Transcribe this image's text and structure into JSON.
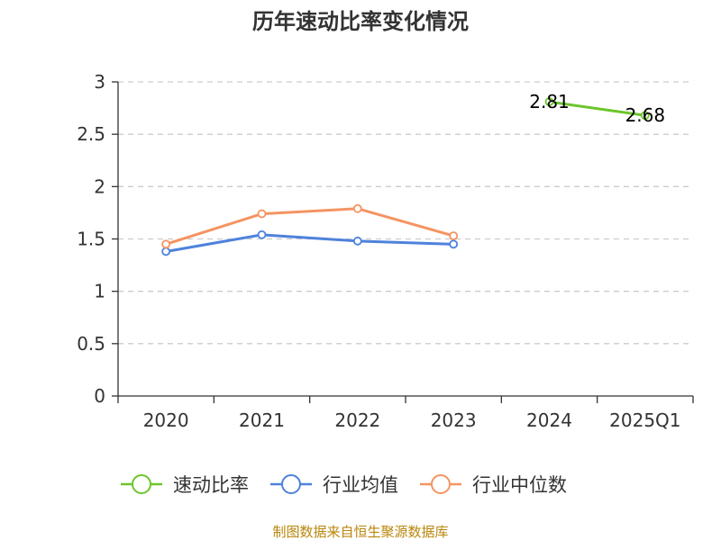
{
  "chart_data": {
    "type": "line",
    "title": "历年速动比率变化情况",
    "categories": [
      "2020",
      "2021",
      "2022",
      "2023",
      "2024",
      "2025Q1"
    ],
    "ylim": [
      0,
      3
    ],
    "yticks": [
      "0",
      "0.5",
      "1",
      "1.5",
      "2",
      "2.5",
      "3"
    ],
    "grid": true,
    "legend_position": "bottom",
    "series": [
      {
        "name": "速动比率",
        "color": "#6dc52b",
        "values": [
          null,
          null,
          null,
          null,
          2.81,
          2.68
        ],
        "labels": [
          "",
          "",
          "",
          "",
          "2.81",
          "2.68"
        ]
      },
      {
        "name": "行业均值",
        "color": "#4e82dc",
        "values": [
          1.38,
          1.54,
          1.48,
          1.45,
          null,
          null
        ],
        "labels": [
          "",
          "",
          "",
          "",
          "",
          ""
        ]
      },
      {
        "name": "行业中位数",
        "color": "#f59462",
        "values": [
          1.45,
          1.74,
          1.79,
          1.53,
          null,
          null
        ],
        "labels": [
          "",
          "",
          "",
          "",
          "",
          ""
        ]
      }
    ]
  },
  "source_note": "制图数据来自恒生聚源数据库"
}
